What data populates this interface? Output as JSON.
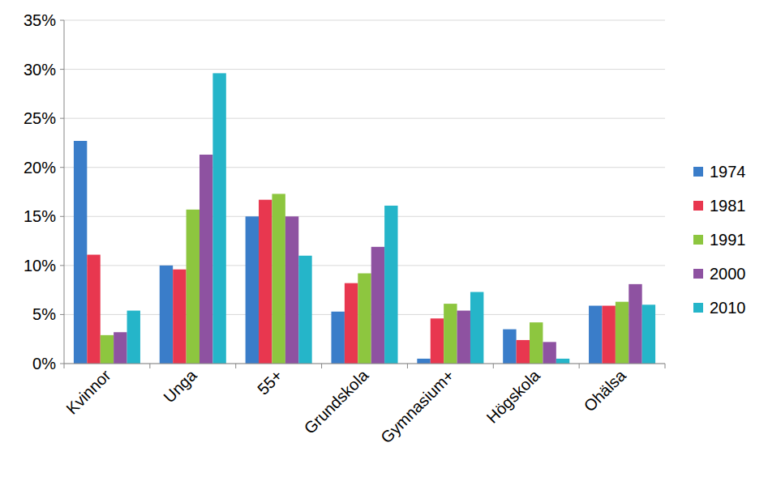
{
  "chart_data": {
    "type": "bar",
    "categories": [
      "Kvinnor",
      "Unga",
      "55+",
      "Grundskola",
      "Gymnasium+",
      "Högskola",
      "Ohälsa"
    ],
    "series": [
      {
        "name": "1974",
        "color": "#3a7dc9",
        "values": [
          22.7,
          10.0,
          15.0,
          5.3,
          0.5,
          3.5,
          5.9
        ]
      },
      {
        "name": "1981",
        "color": "#e8374f",
        "values": [
          11.1,
          9.6,
          16.7,
          8.2,
          4.6,
          2.4,
          5.9
        ]
      },
      {
        "name": "1991",
        "color": "#8dc63f",
        "values": [
          2.9,
          15.7,
          17.3,
          9.2,
          6.1,
          4.2,
          6.3
        ]
      },
      {
        "name": "2000",
        "color": "#8e52a1",
        "values": [
          3.2,
          21.3,
          15.0,
          11.9,
          5.4,
          2.2,
          8.1
        ]
      },
      {
        "name": "2010",
        "color": "#25b5c9",
        "values": [
          5.4,
          29.6,
          11.0,
          16.1,
          7.3,
          0.5,
          6.0
        ]
      }
    ],
    "ylim": [
      0,
      35
    ],
    "yticks": [
      {
        "value": 0,
        "label": "0%"
      },
      {
        "value": 5,
        "label": "5%"
      },
      {
        "value": 10,
        "label": "10%"
      },
      {
        "value": 15,
        "label": "15%"
      },
      {
        "value": 20,
        "label": "20%"
      },
      {
        "value": 25,
        "label": "25%"
      },
      {
        "value": 30,
        "label": "30%"
      },
      {
        "value": 35,
        "label": "35%"
      }
    ],
    "grid": true,
    "legend": "right"
  }
}
